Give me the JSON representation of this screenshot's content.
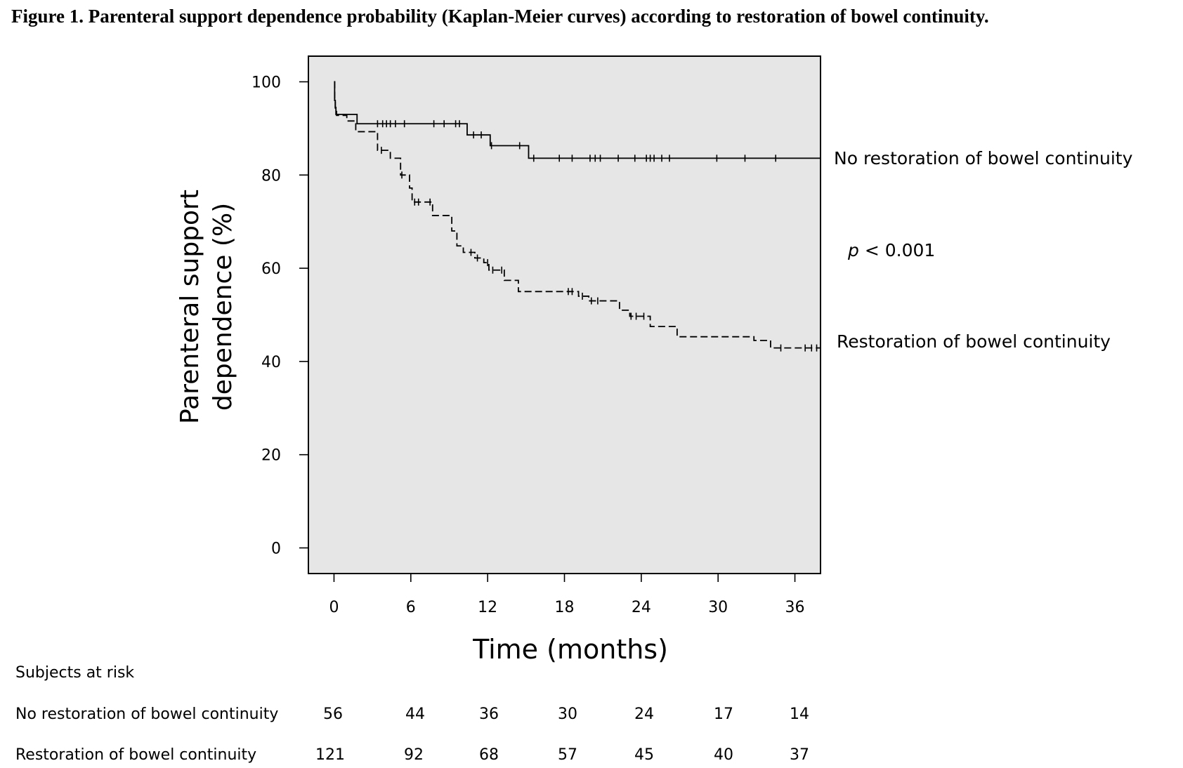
{
  "figure": {
    "title": "Figure 1. Parenteral support dependence probability (Kaplan-Meier curves) according to restoration of bowel continuity."
  },
  "chart_data": {
    "type": "line",
    "subtype": "kaplan-meier",
    "title": "Figure 1. Parenteral support dependence probability (Kaplan-Meier curves) according to restoration of bowel continuity.",
    "xlabel": "Time (months)",
    "ylabel_line1": "Parenteral support",
    "ylabel_line2": "dependence (%)",
    "xlim": [
      -2,
      38
    ],
    "ylim": [
      -5.5,
      105.5
    ],
    "xticks": [
      0,
      6,
      12,
      18,
      24,
      30,
      36
    ],
    "yticks": [
      0,
      20,
      40,
      60,
      80,
      100
    ],
    "grid": false,
    "background_color": "#e6e6e6",
    "annotation": {
      "p_symbol": "p",
      "p_text": " < 0.001"
    },
    "series": [
      {
        "name": "No restoration of bowel continuity",
        "line_style": "solid",
        "color": "#000000",
        "steps": [
          [
            0,
            100
          ],
          [
            0.05,
            96
          ],
          [
            0.1,
            94.5
          ],
          [
            0.15,
            93
          ],
          [
            1.8,
            91
          ],
          [
            10.4,
            88.6
          ],
          [
            12.2,
            86.3
          ],
          [
            15.2,
            83.6
          ],
          [
            38,
            83.6
          ]
        ],
        "censored": [
          3.4,
          3.8,
          4.1,
          4.4,
          4.8,
          5.5,
          7.8,
          8.6,
          9.5,
          9.8,
          10.9,
          11.5,
          12.3,
          14.5,
          15.6,
          17.6,
          18.6,
          20.0,
          20.4,
          20.8,
          22.2,
          23.5,
          24.4,
          24.7,
          25.0,
          25.6,
          26.2,
          29.9,
          32.1,
          34.5
        ]
      },
      {
        "name": "Restoration of bowel continuity",
        "line_style": "dashed",
        "color": "#000000",
        "steps": [
          [
            0,
            100
          ],
          [
            0.05,
            96
          ],
          [
            0.1,
            94
          ],
          [
            0.2,
            92.8
          ],
          [
            1.0,
            91.6
          ],
          [
            1.7,
            89.3
          ],
          [
            3.4,
            85.3
          ],
          [
            4.4,
            83.6
          ],
          [
            5.2,
            80.0
          ],
          [
            5.9,
            77.2
          ],
          [
            6.1,
            74.2
          ],
          [
            7.7,
            71.3
          ],
          [
            9.2,
            68.0
          ],
          [
            9.6,
            64.8
          ],
          [
            10.1,
            63.4
          ],
          [
            11.0,
            62.2
          ],
          [
            11.7,
            61.2
          ],
          [
            12.1,
            59.6
          ],
          [
            13.3,
            57.4
          ],
          [
            14.4,
            55.0
          ],
          [
            19.1,
            54.0
          ],
          [
            19.9,
            53.0
          ],
          [
            22.3,
            51.0
          ],
          [
            23.1,
            49.7
          ],
          [
            24.7,
            47.5
          ],
          [
            26.8,
            45.3
          ],
          [
            32.8,
            44.5
          ],
          [
            34.1,
            42.9
          ],
          [
            38,
            42.9
          ]
        ],
        "censored": [
          3.7,
          5.3,
          6.3,
          6.6,
          7.5,
          10.7,
          11.2,
          12.0,
          12.4,
          13.1,
          18.3,
          18.6,
          19.4,
          20.1,
          20.6,
          23.2,
          23.6,
          24.2,
          34.9,
          36.8,
          37.3,
          37.7
        ]
      }
    ],
    "at_risk": {
      "heading": "Subjects at risk",
      "times": [
        0,
        6,
        12,
        18,
        24,
        30,
        36
      ],
      "rows": [
        {
          "label": "No restoration of bowel continuity",
          "values": [
            "56",
            "44",
            "36",
            "30",
            "24",
            "17",
            "14"
          ]
        },
        {
          "label": "Restoration of bowel continuity",
          "values": [
            "121",
            "92",
            "68",
            "57",
            "45",
            "40",
            "37"
          ]
        }
      ]
    }
  }
}
